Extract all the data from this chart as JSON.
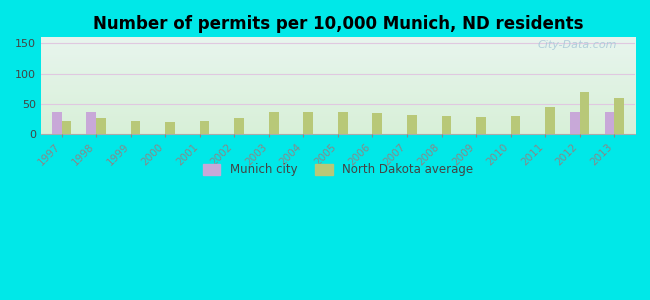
{
  "title": "Number of permits per 10,000 Munich, ND residents",
  "years": [
    1997,
    1998,
    1999,
    2000,
    2001,
    2002,
    2003,
    2004,
    2005,
    2006,
    2007,
    2008,
    2009,
    2010,
    2011,
    2012,
    2013
  ],
  "munich_city": [
    37,
    37,
    0,
    0,
    0,
    0,
    0,
    0,
    0,
    0,
    0,
    0,
    0,
    0,
    0,
    37,
    37
  ],
  "nd_average": [
    22,
    26,
    22,
    19,
    22,
    27,
    36,
    37,
    36,
    35,
    32,
    29,
    28,
    30,
    44,
    70,
    60
  ],
  "munich_color": "#c8a8d8",
  "nd_color": "#b8c878",
  "outer_bg": "#00e8e8",
  "ylim": [
    0,
    160
  ],
  "yticks": [
    0,
    50,
    100,
    150
  ],
  "bar_width": 0.28,
  "legend_munich": "Munich city",
  "legend_nd": "North Dakota average",
  "title_fontsize": 12,
  "bg_top": "#e8f5ee",
  "bg_bottom": "#d8f0d8",
  "grid_color": "#e8d8e8",
  "watermark_color": "#a8c8d8"
}
